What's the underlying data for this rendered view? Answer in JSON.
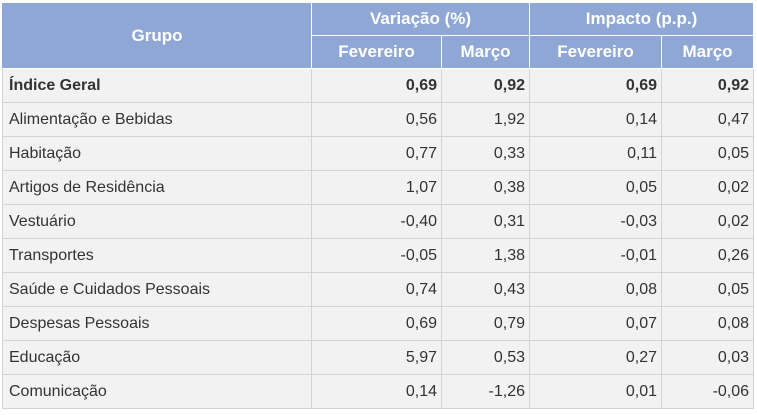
{
  "header": {
    "grupo": "Grupo",
    "variacao": "Variação (%)",
    "impacto": "Impacto (p.p.)",
    "subheaders": [
      "Fevereiro",
      "Março",
      "Fevereiro",
      "Março"
    ]
  },
  "rows": [
    {
      "grupo": "Índice Geral",
      "var_fev": "0,69",
      "var_mar": "0,92",
      "imp_fev": "0,69",
      "imp_mar": "0,92"
    },
    {
      "grupo": "Alimentação e Bebidas",
      "var_fev": "0,56",
      "var_mar": "1,92",
      "imp_fev": "0,14",
      "imp_mar": "0,47"
    },
    {
      "grupo": "Habitação",
      "var_fev": "0,77",
      "var_mar": "0,33",
      "imp_fev": "0,11",
      "imp_mar": "0,05"
    },
    {
      "grupo": "Artigos de Residência",
      "var_fev": "1,07",
      "var_mar": "0,38",
      "imp_fev": "0,05",
      "imp_mar": "0,02"
    },
    {
      "grupo": "Vestuário",
      "var_fev": "-0,40",
      "var_mar": "0,31",
      "imp_fev": "-0,03",
      "imp_mar": "0,02"
    },
    {
      "grupo": "Transportes",
      "var_fev": "-0,05",
      "var_mar": "1,38",
      "imp_fev": "-0,01",
      "imp_mar": "0,26"
    },
    {
      "grupo": "Saúde e Cuidados Pessoais",
      "var_fev": "0,74",
      "var_mar": "0,43",
      "imp_fev": "0,08",
      "imp_mar": "0,05"
    },
    {
      "grupo": "Despesas Pessoais",
      "var_fev": "0,69",
      "var_mar": "0,79",
      "imp_fev": "0,07",
      "imp_mar": "0,08"
    },
    {
      "grupo": "Educação",
      "var_fev": "5,97",
      "var_mar": "0,53",
      "imp_fev": "0,27",
      "imp_mar": "0,03"
    },
    {
      "grupo": "Comunicação",
      "var_fev": "0,14",
      "var_mar": "-1,26",
      "imp_fev": "0,01",
      "imp_mar": "-0,06"
    }
  ]
}
